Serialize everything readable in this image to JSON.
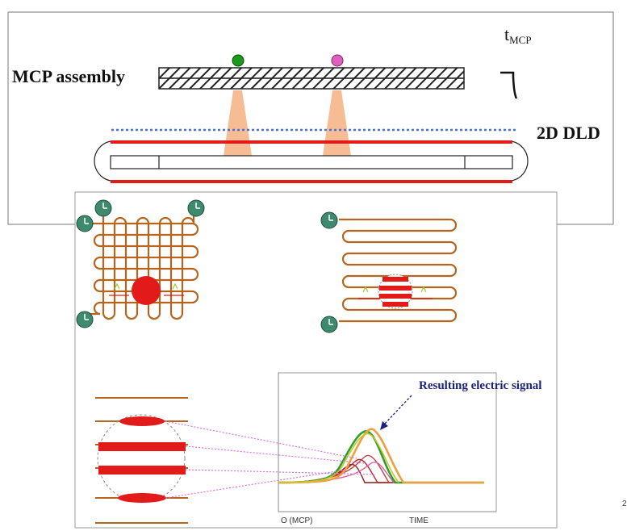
{
  "labels": {
    "mcp_assembly": "MCP assembly",
    "dld": "2D DLD",
    "t": "t",
    "t_sub": "MCP",
    "resulting_signal": "Resulting electric signal",
    "axis_origin": "O (MCP)",
    "axis_time": "TIME",
    "page_number": "2"
  },
  "colors": {
    "electron_left": "#1a9a1a",
    "electron_right": "#e060c0",
    "cone": "#f5b183",
    "anode_line": "#e31a1a",
    "dotted_grid": "#4a70d8",
    "wire": "#b5651d",
    "timer": "#3d8a6e",
    "charge_cloud": "#e31a1a",
    "signal_line": "#e070e0",
    "pulse_green": "#2e9e2e",
    "pulse_orange": "#f0a040",
    "pulse_red": "#b22222"
  },
  "icons": {
    "timer": "clock-icon"
  }
}
